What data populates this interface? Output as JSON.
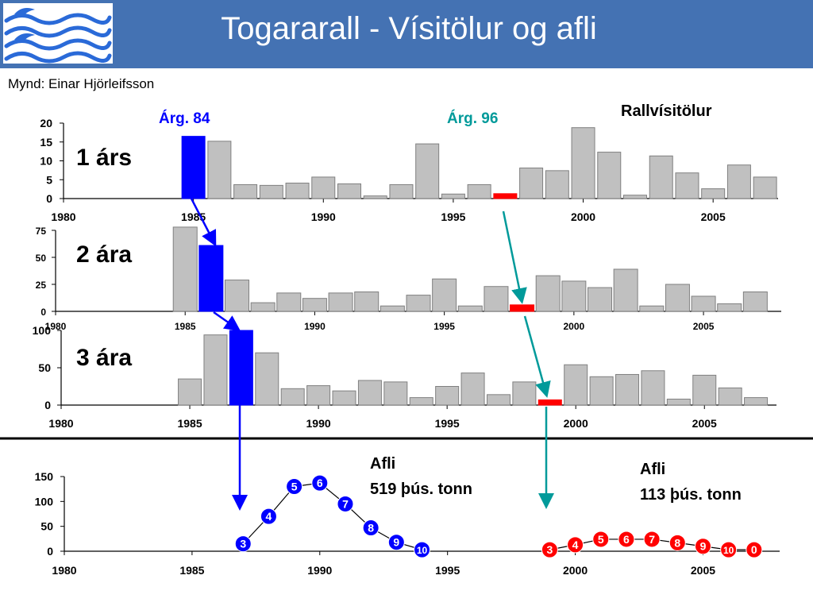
{
  "header": {
    "title": "Togararall - Vísitölur og afli",
    "author": "Mynd: Einar Hjörleifsson"
  },
  "annotations": {
    "rallvisitolur": "Rallvísitölur",
    "arg84": "Árg. 84",
    "arg96": "Árg. 96",
    "afli1_line1": "Afli",
    "afli1_line2": "519 þús. tonn",
    "afli2_line1": "Afli",
    "afli2_line2": "113 þús. tonn"
  },
  "colors": {
    "bar": "#c0c0c0",
    "highlight_blue": "#0000ff",
    "highlight_red": "#ff0000",
    "teal": "#009a9a",
    "header": "#4472b3"
  },
  "chart_data": [
    {
      "type": "bar",
      "label": "1 árs",
      "xlim": [
        1980,
        2007.5
      ],
      "ylim": [
        0,
        20
      ],
      "xticks": [
        1980,
        1985,
        1990,
        1995,
        2000,
        2005
      ],
      "yticks": [
        0,
        5,
        10,
        15,
        20
      ],
      "x": [
        1985,
        1986,
        1987,
        1988,
        1989,
        1990,
        1991,
        1992,
        1993,
        1994,
        1995,
        1996,
        1997,
        1998,
        1999,
        2000,
        2001,
        2002,
        2003,
        2004,
        2005,
        2006,
        2007
      ],
      "values": [
        16.5,
        15.2,
        3.7,
        3.5,
        4.1,
        5.7,
        3.9,
        0.7,
        3.7,
        14.5,
        1.2,
        3.7,
        1.3,
        8.1,
        7.4,
        18.8,
        12.3,
        0.9,
        11.3,
        6.8,
        2.6,
        8.9,
        5.7
      ],
      "highlight": {
        "1985": "blue",
        "1997": "red"
      }
    },
    {
      "type": "bar",
      "label": "2 ára",
      "xlim": [
        1980,
        2008
      ],
      "ylim": [
        0,
        75
      ],
      "xticks": [
        1980,
        1985,
        1990,
        1995,
        2000,
        2005
      ],
      "yticks": [
        0,
        25,
        50,
        75
      ],
      "x": [
        1985,
        1986,
        1987,
        1988,
        1989,
        1990,
        1991,
        1992,
        1993,
        1994,
        1995,
        1996,
        1997,
        1998,
        1999,
        2000,
        2001,
        2002,
        2003,
        2004,
        2005,
        2006,
        2007
      ],
      "values": [
        78,
        61,
        29,
        8,
        17,
        12,
        17,
        18,
        5,
        15,
        30,
        5,
        23,
        6,
        33,
        28,
        22,
        39,
        5,
        25,
        14,
        7,
        18
      ],
      "highlight": {
        "1986": "blue",
        "1998": "red"
      }
    },
    {
      "type": "bar",
      "label": "3 ára",
      "xlim": [
        1980,
        2007.8
      ],
      "ylim": [
        0,
        100
      ],
      "xticks": [
        1980,
        1985,
        1990,
        1995,
        2000,
        2005
      ],
      "yticks": [
        0,
        50,
        100
      ],
      "x": [
        1985,
        1986,
        1987,
        1988,
        1989,
        1990,
        1991,
        1992,
        1993,
        1994,
        1995,
        1996,
        1997,
        1998,
        1999,
        2000,
        2001,
        2002,
        2003,
        2004,
        2005,
        2006,
        2007
      ],
      "values": [
        35,
        94,
        100,
        70,
        22,
        26,
        19,
        33,
        31,
        10,
        25,
        43,
        14,
        31,
        7,
        54,
        38,
        41,
        46,
        8,
        40,
        23,
        10
      ],
      "highlight": {
        "1987": "blue",
        "1999": "red"
      }
    },
    {
      "type": "line",
      "label": "Afli",
      "xlim": [
        1980,
        2008
      ],
      "ylim": [
        0,
        150
      ],
      "xticks": [
        1980,
        1985,
        1990,
        1995,
        2000,
        2005
      ],
      "yticks": [
        0,
        50,
        100,
        150
      ],
      "series": [
        {
          "color": "blue",
          "x": [
            1987,
            1988,
            1989,
            1990,
            1991,
            1992,
            1993,
            1994
          ],
          "y": [
            15,
            70,
            130,
            137,
            95,
            47,
            18,
            3
          ],
          "markers": [
            "3",
            "4",
            "5",
            "6",
            "7",
            "8",
            "9",
            "10"
          ]
        },
        {
          "color": "red",
          "x": [
            1999,
            2000,
            2001,
            2002,
            2003,
            2004,
            2005,
            2006,
            2007
          ],
          "y": [
            3,
            13,
            24,
            24,
            24,
            17,
            10,
            3,
            3
          ],
          "markers": [
            "3",
            "4",
            "5",
            "6",
            "7",
            "8",
            "9",
            "10",
            "0"
          ]
        }
      ]
    }
  ]
}
